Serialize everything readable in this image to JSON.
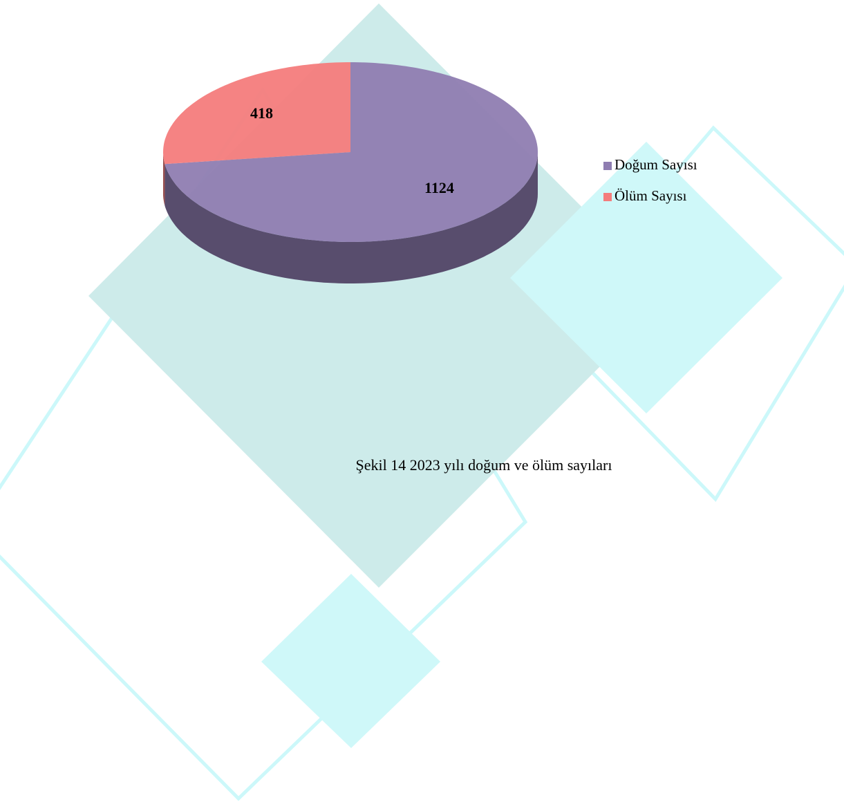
{
  "chart_data": {
    "type": "pie",
    "categories": [
      "Doğum Sayısı",
      "Ölüm Sayısı"
    ],
    "values": [
      1124,
      418
    ],
    "colors": [
      "#8f7db1",
      "#f47c7c"
    ],
    "caption": "Şekil 14 2023 yılı doğum ve ölüm sayıları",
    "legend": "right"
  }
}
